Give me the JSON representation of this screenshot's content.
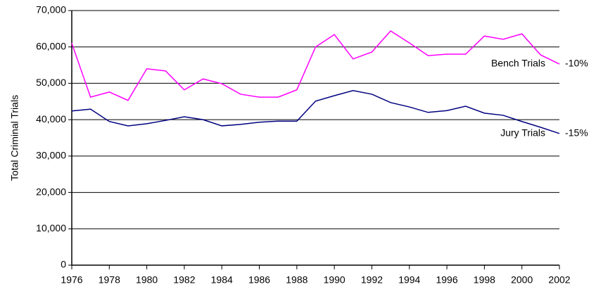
{
  "chart_data": {
    "type": "line",
    "y_label": "Total Criminal Trials",
    "x": [
      1976,
      1977,
      1978,
      1979,
      1980,
      1981,
      1982,
      1983,
      1984,
      1985,
      1986,
      1987,
      1988,
      1989,
      1990,
      1991,
      1992,
      1993,
      1994,
      1995,
      1996,
      1997,
      1998,
      1999,
      2000,
      2001,
      2002
    ],
    "series": [
      {
        "name": "Bench Trials",
        "color": "#ff00ff",
        "change": "-10%",
        "values": [
          61000,
          46200,
          47600,
          45300,
          54000,
          53400,
          48200,
          51200,
          49900,
          47000,
          46200,
          46200,
          48200,
          60000,
          63400,
          56700,
          58600,
          64400,
          61100,
          57600,
          58000,
          58000,
          63000,
          62100,
          63600,
          57800,
          55300
        ]
      },
      {
        "name": "Jury Trials",
        "color": "#000080",
        "change": "-15%",
        "values": [
          42400,
          42900,
          39500,
          38300,
          38900,
          39800,
          40800,
          40000,
          38300,
          38700,
          39300,
          39600,
          39600,
          45100,
          46600,
          48000,
          47000,
          44700,
          43500,
          42000,
          42500,
          43700,
          41800,
          41200,
          39500,
          37900,
          36200
        ]
      }
    ],
    "xlim": [
      1976,
      2002
    ],
    "xticks": [
      1976,
      1978,
      1980,
      1982,
      1984,
      1986,
      1988,
      1990,
      1992,
      1994,
      1996,
      1998,
      2000,
      2002
    ],
    "ylim": [
      0,
      70000
    ],
    "yticks": [
      0,
      {
        "value": 10000,
        "label": "10,000"
      },
      {
        "value": 20000,
        "label": "20,000"
      },
      {
        "value": 30000,
        "label": "30,000"
      },
      {
        "value": 40000,
        "label": "40,000"
      },
      {
        "value": 50000,
        "label": "50,000"
      },
      {
        "value": 60000,
        "label": "60,000"
      },
      {
        "value": 70000,
        "label": "70,000"
      }
    ],
    "grid": true
  }
}
